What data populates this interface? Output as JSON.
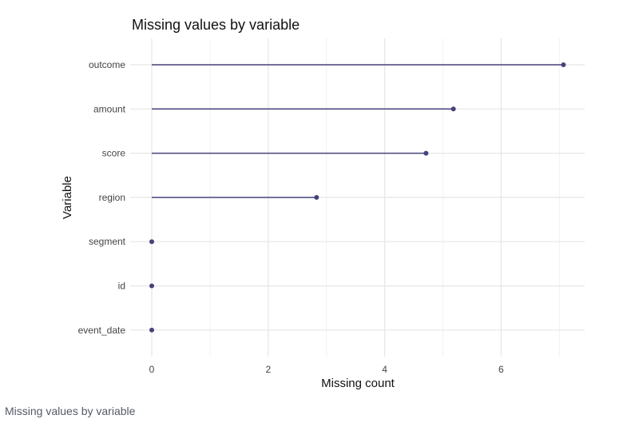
{
  "chart_data": {
    "type": "lollipop",
    "title": "Missing values by variable",
    "xlabel": "Missing count",
    "ylabel": "Variable",
    "categories": [
      "outcome",
      "amount",
      "score",
      "region",
      "segment",
      "id",
      "event_date"
    ],
    "values": [
      7.07,
      5.18,
      4.71,
      2.83,
      0,
      0,
      0
    ],
    "xticks": [
      0,
      2,
      4,
      6
    ],
    "xtick_labels": [
      "0",
      "2",
      "4",
      "6"
    ],
    "xlim": [
      -0.37,
      7.45
    ],
    "grid": true,
    "color": "#46437a"
  },
  "caption": "Missing values by variable"
}
